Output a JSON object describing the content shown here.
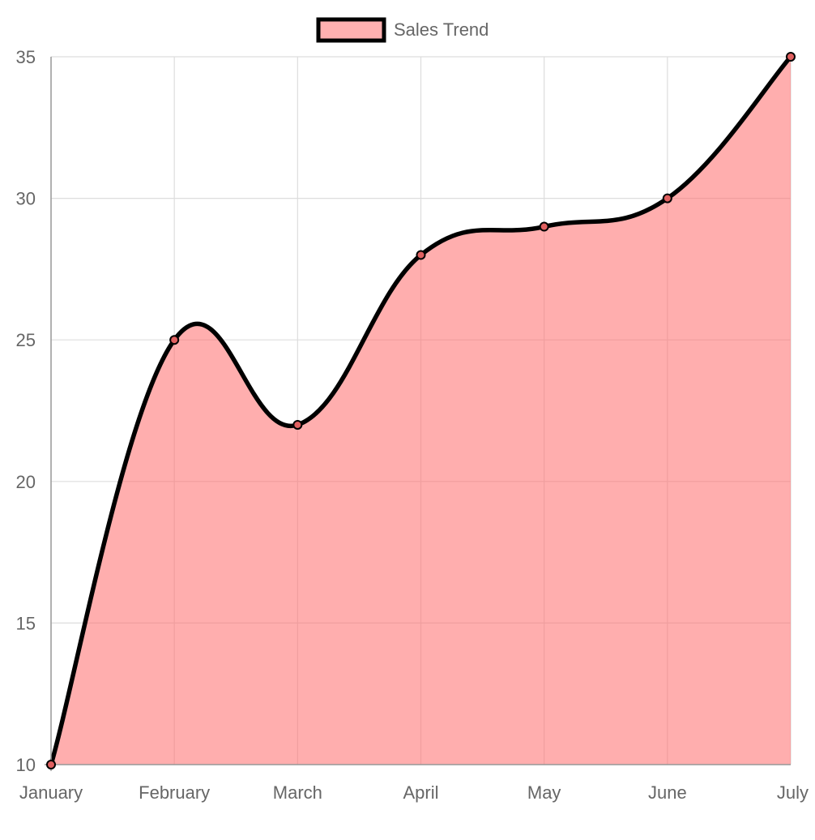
{
  "chart_data": {
    "type": "area",
    "categories": [
      "January",
      "February",
      "March",
      "April",
      "May",
      "June",
      "July"
    ],
    "series": [
      {
        "name": "Sales Trend",
        "values": [
          10,
          25,
          22,
          28,
          29,
          30,
          35
        ]
      }
    ],
    "ylim": [
      10,
      35
    ],
    "yticks": [
      10,
      15,
      20,
      25,
      30,
      35
    ],
    "grid": true,
    "legend": "top-center",
    "colors": {
      "fill": "#ff6b6b",
      "line": "#000000",
      "grid": "#dddddd",
      "axis": "#999999",
      "text": "#666666"
    }
  }
}
